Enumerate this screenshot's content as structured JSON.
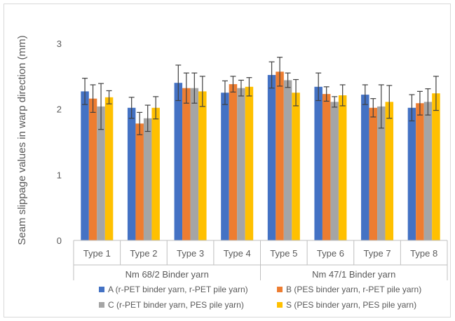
{
  "chart_data": {
    "type": "bar",
    "ylabel": "Seam slippage values in warp direction (mm)",
    "ylim": [
      0,
      3
    ],
    "yticks": [
      0,
      1,
      2,
      3
    ],
    "grid": false,
    "legend_position": "bottom",
    "groups": [
      {
        "label": "Nm 68/2 Binder yarn",
        "categories": [
          "Type 1",
          "Type 2",
          "Type 3",
          "Type 4"
        ]
      },
      {
        "label": "Nm 47/1 Binder yarn",
        "categories": [
          "Type 5",
          "Type 6",
          "Type 7",
          "Type 8"
        ]
      }
    ],
    "categories": [
      "Type 1",
      "Type 2",
      "Type 3",
      "Type 4",
      "Type 5",
      "Type 6",
      "Type 7",
      "Type 8"
    ],
    "series": [
      {
        "name": "A (r-PET binder yarn, r-PET pile yarn)",
        "color": "#4472C4",
        "values": [
          2.27,
          2.02,
          2.4,
          2.25,
          2.52,
          2.34,
          2.22,
          2.02
        ],
        "errors": [
          0.2,
          0.16,
          0.27,
          0.18,
          0.2,
          0.21,
          0.15,
          0.2
        ]
      },
      {
        "name": "B (PES binder yarn, r-PET pile yarn)",
        "color": "#ED7D31",
        "values": [
          2.16,
          1.78,
          2.32,
          2.38,
          2.57,
          2.23,
          2.02,
          2.09
        ],
        "errors": [
          0.21,
          0.17,
          0.23,
          0.12,
          0.22,
          0.11,
          0.14,
          0.18
        ]
      },
      {
        "name": "C (r-PET binder yarn, PES pile yarn)",
        "color": "#A5A5A5",
        "values": [
          2.04,
          1.86,
          2.32,
          2.32,
          2.44,
          2.11,
          2.04,
          2.11
        ],
        "errors": [
          0.35,
          0.2,
          0.23,
          0.12,
          0.11,
          0.08,
          0.33,
          0.2
        ]
      },
      {
        "name": "S (PES binder yarn, PES pile yarn)",
        "color": "#FFC000",
        "values": [
          2.18,
          2.02,
          2.27,
          2.34,
          2.25,
          2.21,
          2.11,
          2.24
        ],
        "errors": [
          0.1,
          0.17,
          0.23,
          0.14,
          0.2,
          0.16,
          0.25,
          0.26
        ]
      }
    ]
  }
}
